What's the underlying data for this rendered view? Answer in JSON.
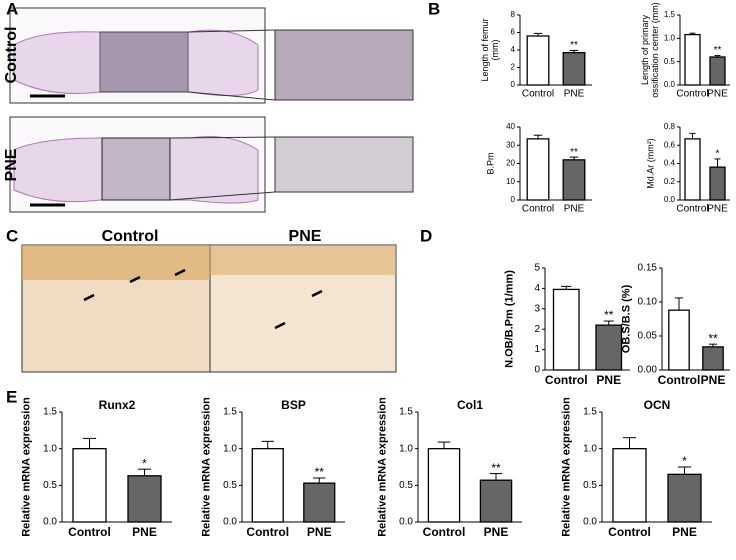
{
  "panel_labels": [
    "A",
    "B",
    "C",
    "D",
    "E"
  ],
  "image_labels": {
    "a_top": "Control",
    "a_bottom": "PNE",
    "c_left": "Control",
    "c_right": "PNE"
  },
  "chart_data": [
    {
      "type": "bar",
      "ylabel": "Length of femur\n(mm)",
      "categories": [
        "Control",
        "PNE"
      ],
      "values": [
        5.6,
        3.7
      ],
      "errors": [
        0.3,
        0.25
      ],
      "colors": [
        "#ffffff",
        "#666666"
      ],
      "significance": "**",
      "ylim": [
        0,
        8
      ],
      "yticks": [
        0,
        2,
        4,
        6,
        8
      ]
    },
    {
      "type": "bar",
      "ylabel": "Length of primary\nossification center (mm)",
      "categories": [
        "Control",
        "PNE"
      ],
      "values": [
        1.08,
        0.6
      ],
      "errors": [
        0.03,
        0.03
      ],
      "colors": [
        "#ffffff",
        "#666666"
      ],
      "significance": "**",
      "ylim": [
        0,
        1.5
      ],
      "yticks": [
        {
          "value": 0,
          "label": "0.0"
        },
        0.5,
        {
          "value": 1,
          "label": "1.0"
        },
        1.5
      ]
    },
    {
      "type": "bar",
      "ylabel": "B.Pm",
      "categories": [
        "Control",
        "PNE"
      ],
      "values": [
        33.5,
        22
      ],
      "errors": [
        2,
        1.5
      ],
      "colors": [
        "#ffffff",
        "#666666"
      ],
      "significance": "**",
      "ylim": [
        0,
        40
      ],
      "yticks": [
        0,
        10,
        20,
        30,
        40
      ]
    },
    {
      "type": "bar",
      "ylabel": "Md.Ar (mm²)",
      "categories": [
        "Control",
        "PNE"
      ],
      "values": [
        0.67,
        0.36
      ],
      "errors": [
        0.06,
        0.09
      ],
      "colors": [
        "#ffffff",
        "#666666"
      ],
      "significance": "*",
      "ylim": [
        0,
        0.8
      ],
      "yticks": [
        {
          "value": 0,
          "label": "0.0"
        },
        0.2,
        0.4,
        0.6,
        0.8
      ]
    },
    {
      "type": "bar",
      "ylabel": "N.OB/B.Pm (1/mm)",
      "categories": [
        "Control",
        "PNE"
      ],
      "values": [
        3.95,
        2.2
      ],
      "errors": [
        0.15,
        0.2
      ],
      "colors": [
        "#ffffff",
        "#666666"
      ],
      "significance": "**",
      "ylim": [
        0,
        5
      ],
      "yticks": [
        0,
        1,
        2,
        3,
        4,
        5
      ]
    },
    {
      "type": "bar",
      "ylabel": "OB.S/B.S (%)",
      "categories": [
        "Control",
        "PNE"
      ],
      "values": [
        0.088,
        0.034
      ],
      "errors": [
        0.018,
        0.004
      ],
      "colors": [
        "#ffffff",
        "#666666"
      ],
      "significance": "**",
      "ylim": [
        0,
        0.15
      ],
      "yticks": [
        {
          "value": 0,
          "label": "0.00"
        },
        0.05,
        {
          "value": 0.1,
          "label": "0.10"
        },
        0.15
      ]
    },
    {
      "type": "bar",
      "title": "Runx2",
      "ylabel": "Relative mRNA expression",
      "categories": [
        "Control",
        "PNE"
      ],
      "values": [
        1.0,
        0.63
      ],
      "errors": [
        0.14,
        0.09
      ],
      "colors": [
        "#ffffff",
        "#666666"
      ],
      "significance": "*",
      "ylim": [
        0,
        1.5
      ],
      "yticks": [
        {
          "value": 0,
          "label": "0.0"
        },
        0.5,
        {
          "value": 1,
          "label": "1.0"
        },
        1.5
      ]
    },
    {
      "type": "bar",
      "title": "BSP",
      "ylabel": "Relative mRNA expression",
      "categories": [
        "Control",
        "PNE"
      ],
      "values": [
        1.0,
        0.53
      ],
      "errors": [
        0.1,
        0.07
      ],
      "colors": [
        "#ffffff",
        "#666666"
      ],
      "significance": "**",
      "ylim": [
        0,
        1.5
      ],
      "yticks": [
        {
          "value": 0,
          "label": "0.0"
        },
        0.5,
        {
          "value": 1,
          "label": "1.0"
        },
        1.5
      ]
    },
    {
      "type": "bar",
      "title": "Col1",
      "ylabel": "Relative mRNA expression",
      "categories": [
        "Control",
        "PNE"
      ],
      "values": [
        1.0,
        0.57
      ],
      "errors": [
        0.09,
        0.09
      ],
      "colors": [
        "#ffffff",
        "#666666"
      ],
      "significance": "**",
      "ylim": [
        0,
        1.5
      ],
      "yticks": [
        {
          "value": 0,
          "label": "0.0"
        },
        0.5,
        {
          "value": 1,
          "label": "1.0"
        },
        1.5
      ]
    },
    {
      "type": "bar",
      "title": "OCN",
      "ylabel": "Relative mRNA expression",
      "categories": [
        "Control",
        "PNE"
      ],
      "values": [
        1.0,
        0.65
      ],
      "errors": [
        0.15,
        0.1
      ],
      "colors": [
        "#ffffff",
        "#666666"
      ],
      "significance": "*",
      "ylim": [
        0,
        1.5
      ],
      "yticks": [
        {
          "value": 0,
          "label": "0.0"
        },
        0.5,
        {
          "value": 1,
          "label": "1.0"
        },
        1.5
      ]
    }
  ]
}
